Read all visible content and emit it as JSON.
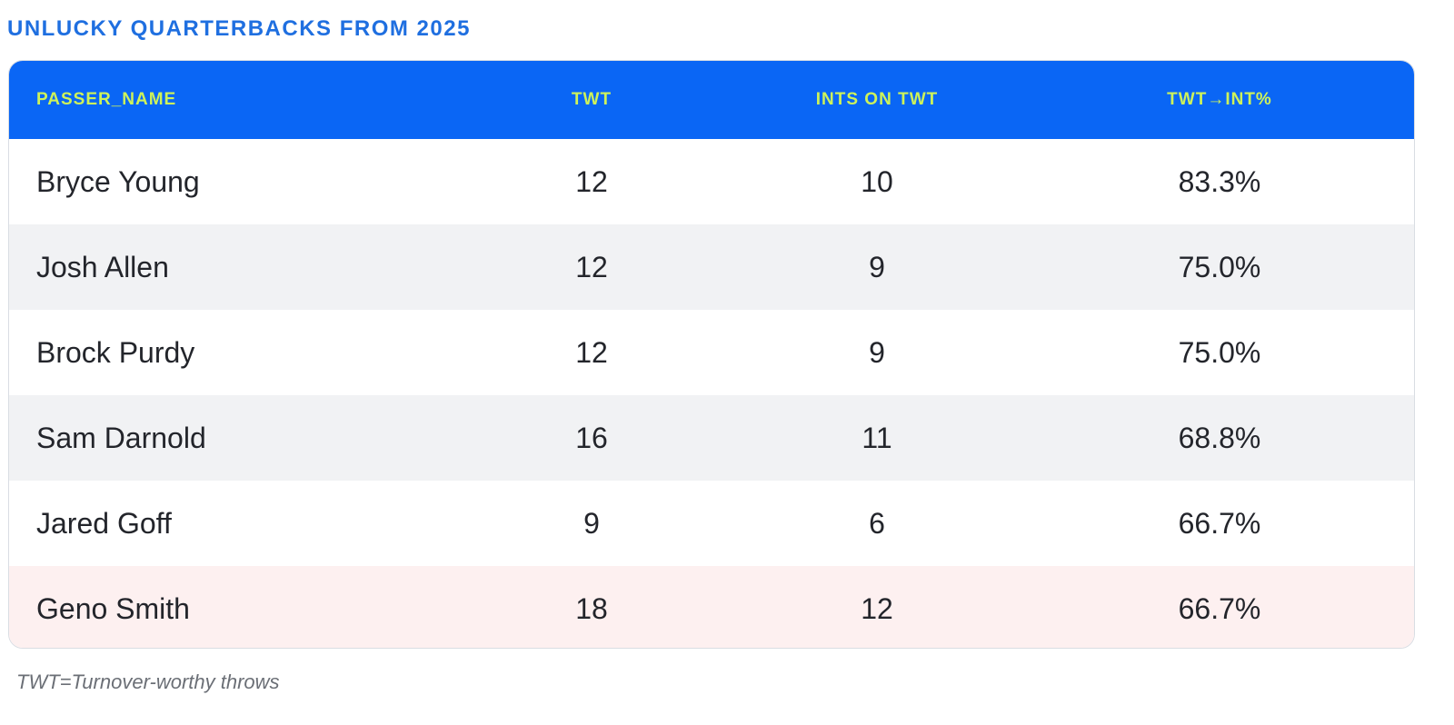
{
  "title": "UNLUCKY QUARTERBACKS FROM 2025",
  "footnote": "TWT=Turnover-worthy throws",
  "colors": {
    "title": "#1f6fe0",
    "header_bg": "#0a66f5",
    "header_text": "#cdf25a",
    "row_alt": "#f1f2f4",
    "row_highlight": "#fdf0f0"
  },
  "chart_data": {
    "type": "table",
    "title": "UNLUCKY QUARTERBACKS FROM 2025",
    "columns": [
      "PASSER_NAME",
      "TWT",
      "INTS ON TWT",
      "TWT→INT%"
    ],
    "rows": [
      [
        "Bryce Young",
        "12",
        "10",
        "83.3%"
      ],
      [
        "Josh Allen",
        "12",
        "9",
        "75.0%"
      ],
      [
        "Brock Purdy",
        "12",
        "9",
        "75.0%"
      ],
      [
        "Sam Darnold",
        "16",
        "11",
        "68.8%"
      ],
      [
        "Jared Goff",
        "9",
        "6",
        "66.7%"
      ],
      [
        "Geno Smith",
        "18",
        "12",
        "66.7%"
      ]
    ],
    "highlighted_row": 5
  }
}
